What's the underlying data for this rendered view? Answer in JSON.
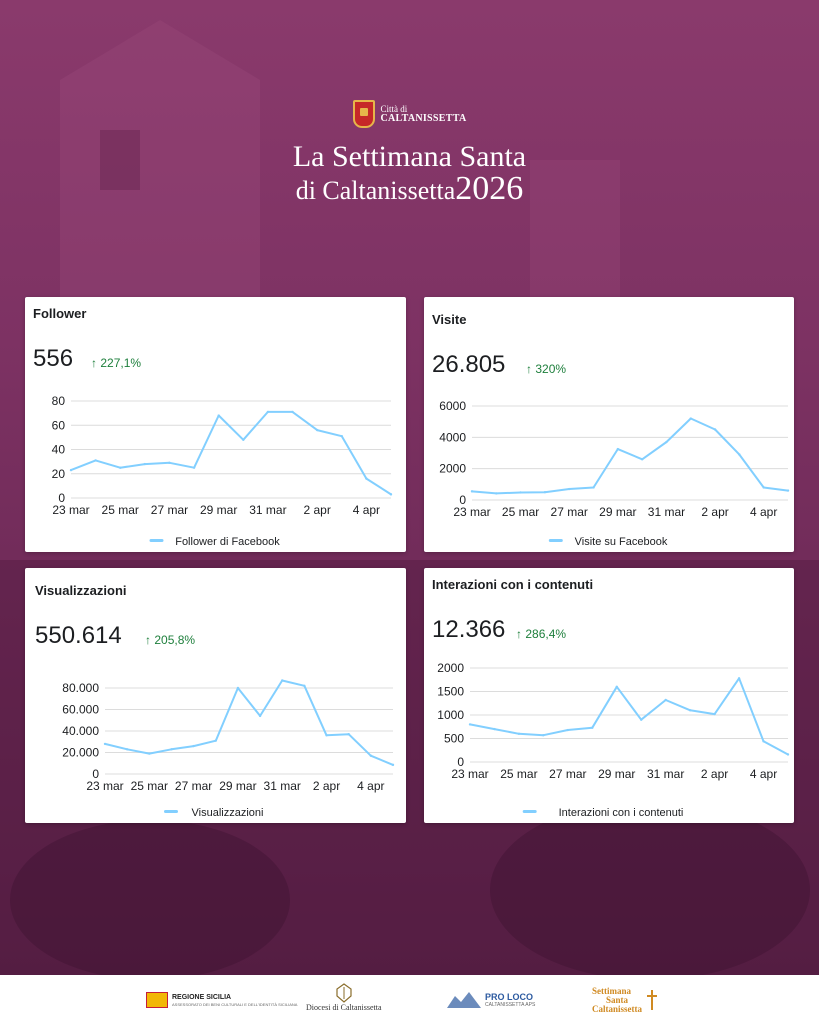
{
  "header": {
    "logo_line1": "Città di",
    "logo_line2": "CALTANISSETTA",
    "title_line1": "La Settimana Santa",
    "title_line2": "di Caltanissetta",
    "title_year": "2026"
  },
  "colors": {
    "background": "#7d3263",
    "line": "#82cfff",
    "positive": "#1e7f3c"
  },
  "cards": [
    {
      "title": "Follower",
      "value": "556",
      "change": "227,1%",
      "change_icon": "arrow-up-icon"
    },
    {
      "title": "Visite",
      "value": "26.805",
      "change": "320%",
      "change_icon": "arrow-up-icon"
    },
    {
      "title": "Visualizzazioni",
      "value": "550.614",
      "change": "205,8%",
      "change_icon": "arrow-up-icon"
    },
    {
      "title": "Interazioni con i contenuti",
      "value": "12.366",
      "change": "286,4%",
      "change_icon": "arrow-up-icon"
    }
  ],
  "footer": {
    "regione": "REGIONE SICILIA",
    "regione_sub": "ASSESSORATO DEI BENI CULTURALI E DELL'IDENTITÀ SICILIANA",
    "diocesi": "Diocesi di Caltanissetta",
    "proloco": "PRO LOCO",
    "proloco_sub": "CALTANISSETTA APS",
    "settimana_line1": "Settimana",
    "settimana_line2": "Santa",
    "settimana_line3": "Caltanissetta"
  },
  "chart_data": [
    {
      "type": "line",
      "x": [
        "23 mar",
        "24 mar",
        "25 mar",
        "26 mar",
        "27 mar",
        "28 mar",
        "29 mar",
        "30 mar",
        "31 mar",
        "1 apr",
        "2 apr",
        "3 apr",
        "4 apr",
        "5 apr"
      ],
      "x_tick_labels": [
        "23 mar",
        "25 mar",
        "27 mar",
        "29 mar",
        "31 mar",
        "2 apr",
        "4 apr"
      ],
      "series": [
        {
          "name": "Follower di Facebook",
          "values": [
            23,
            31,
            25,
            28,
            29,
            25,
            68,
            48,
            71,
            71,
            56,
            51,
            16,
            3
          ]
        }
      ],
      "y_ticks": [
        "0",
        "20",
        "40",
        "60",
        "80"
      ],
      "ylim": [
        0,
        80
      ],
      "grid": true,
      "legend": "bottom"
    },
    {
      "type": "line",
      "x": [
        "23 mar",
        "24 mar",
        "25 mar",
        "26 mar",
        "27 mar",
        "28 mar",
        "29 mar",
        "30 mar",
        "31 mar",
        "1 apr",
        "2 apr",
        "3 apr",
        "4 apr",
        "5 apr"
      ],
      "x_tick_labels": [
        "23 mar",
        "25 mar",
        "27 mar",
        "29 mar",
        "31 mar",
        "2 apr",
        "4 apr"
      ],
      "series": [
        {
          "name": "Visite su Facebook",
          "values": [
            550,
            420,
            480,
            500,
            700,
            800,
            3250,
            2600,
            3700,
            5200,
            4500,
            2900,
            800,
            600
          ]
        }
      ],
      "y_ticks": [
        "0",
        "2000",
        "4000",
        "6000"
      ],
      "ylim": [
        0,
        6000
      ],
      "grid": true,
      "legend": "bottom"
    },
    {
      "type": "line",
      "x": [
        "23 mar",
        "24 mar",
        "25 mar",
        "26 mar",
        "27 mar",
        "28 mar",
        "29 mar",
        "30 mar",
        "31 mar",
        "1 apr",
        "2 apr",
        "3 apr",
        "4 apr",
        "5 apr"
      ],
      "x_tick_labels": [
        "23 mar",
        "25 mar",
        "27 mar",
        "29 mar",
        "31 mar",
        "2 apr",
        "4 apr"
      ],
      "series": [
        {
          "name": "Visualizzazioni",
          "values": [
            28000,
            23000,
            19000,
            23000,
            26000,
            31000,
            80000,
            54000,
            87000,
            82000,
            36000,
            37000,
            17000,
            8500
          ]
        }
      ],
      "y_ticks": [
        "0",
        "20.000",
        "40.000",
        "60.000",
        "80.000"
      ],
      "ylim": [
        0,
        80000
      ],
      "grid": true,
      "legend": "bottom"
    },
    {
      "type": "line",
      "x": [
        "23 mar",
        "24 mar",
        "25 mar",
        "26 mar",
        "27 mar",
        "28 mar",
        "29 mar",
        "30 mar",
        "31 mar",
        "1 apr",
        "2 apr",
        "3 apr",
        "4 apr",
        "5 apr"
      ],
      "x_tick_labels": [
        "23 mar",
        "25 mar",
        "27 mar",
        "29 mar",
        "31 mar",
        "2 apr",
        "4 apr"
      ],
      "series": [
        {
          "name": "Interazioni con i contenuti",
          "values": [
            800,
            700,
            600,
            570,
            680,
            730,
            1600,
            900,
            1320,
            1100,
            1020,
            1780,
            440,
            160
          ]
        }
      ],
      "y_ticks": [
        "0",
        "500",
        "1000",
        "1500",
        "2000"
      ],
      "ylim": [
        0,
        2000
      ],
      "grid": true,
      "legend": "bottom"
    }
  ]
}
